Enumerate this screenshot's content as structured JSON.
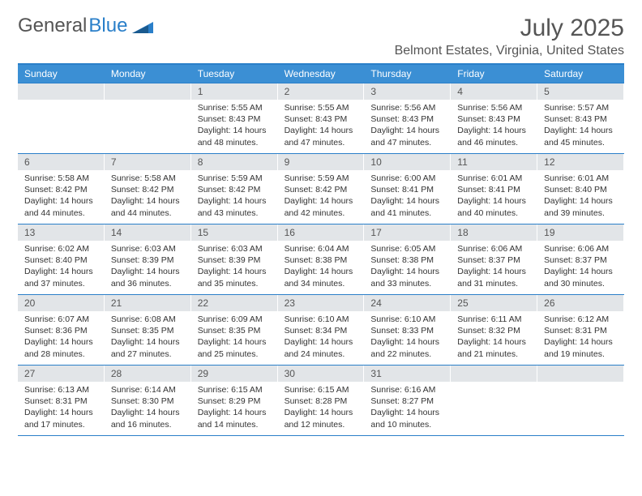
{
  "logo": {
    "text1": "General",
    "text2": "Blue"
  },
  "title": "July 2025",
  "location": "Belmont Estates, Virginia, United States",
  "colors": {
    "header_bar": "#3b8fd4",
    "accent_line": "#2a7fc9",
    "daynum_bg": "#e2e5e8",
    "text": "#333333",
    "muted": "#555555"
  },
  "daynames": [
    "Sunday",
    "Monday",
    "Tuesday",
    "Wednesday",
    "Thursday",
    "Friday",
    "Saturday"
  ],
  "weeks": [
    [
      {
        "n": "",
        "sr": "",
        "ss": "",
        "dl": ""
      },
      {
        "n": "",
        "sr": "",
        "ss": "",
        "dl": ""
      },
      {
        "n": "1",
        "sr": "Sunrise: 5:55 AM",
        "ss": "Sunset: 8:43 PM",
        "dl": "Daylight: 14 hours and 48 minutes."
      },
      {
        "n": "2",
        "sr": "Sunrise: 5:55 AM",
        "ss": "Sunset: 8:43 PM",
        "dl": "Daylight: 14 hours and 47 minutes."
      },
      {
        "n": "3",
        "sr": "Sunrise: 5:56 AM",
        "ss": "Sunset: 8:43 PM",
        "dl": "Daylight: 14 hours and 47 minutes."
      },
      {
        "n": "4",
        "sr": "Sunrise: 5:56 AM",
        "ss": "Sunset: 8:43 PM",
        "dl": "Daylight: 14 hours and 46 minutes."
      },
      {
        "n": "5",
        "sr": "Sunrise: 5:57 AM",
        "ss": "Sunset: 8:43 PM",
        "dl": "Daylight: 14 hours and 45 minutes."
      }
    ],
    [
      {
        "n": "6",
        "sr": "Sunrise: 5:58 AM",
        "ss": "Sunset: 8:42 PM",
        "dl": "Daylight: 14 hours and 44 minutes."
      },
      {
        "n": "7",
        "sr": "Sunrise: 5:58 AM",
        "ss": "Sunset: 8:42 PM",
        "dl": "Daylight: 14 hours and 44 minutes."
      },
      {
        "n": "8",
        "sr": "Sunrise: 5:59 AM",
        "ss": "Sunset: 8:42 PM",
        "dl": "Daylight: 14 hours and 43 minutes."
      },
      {
        "n": "9",
        "sr": "Sunrise: 5:59 AM",
        "ss": "Sunset: 8:42 PM",
        "dl": "Daylight: 14 hours and 42 minutes."
      },
      {
        "n": "10",
        "sr": "Sunrise: 6:00 AM",
        "ss": "Sunset: 8:41 PM",
        "dl": "Daylight: 14 hours and 41 minutes."
      },
      {
        "n": "11",
        "sr": "Sunrise: 6:01 AM",
        "ss": "Sunset: 8:41 PM",
        "dl": "Daylight: 14 hours and 40 minutes."
      },
      {
        "n": "12",
        "sr": "Sunrise: 6:01 AM",
        "ss": "Sunset: 8:40 PM",
        "dl": "Daylight: 14 hours and 39 minutes."
      }
    ],
    [
      {
        "n": "13",
        "sr": "Sunrise: 6:02 AM",
        "ss": "Sunset: 8:40 PM",
        "dl": "Daylight: 14 hours and 37 minutes."
      },
      {
        "n": "14",
        "sr": "Sunrise: 6:03 AM",
        "ss": "Sunset: 8:39 PM",
        "dl": "Daylight: 14 hours and 36 minutes."
      },
      {
        "n": "15",
        "sr": "Sunrise: 6:03 AM",
        "ss": "Sunset: 8:39 PM",
        "dl": "Daylight: 14 hours and 35 minutes."
      },
      {
        "n": "16",
        "sr": "Sunrise: 6:04 AM",
        "ss": "Sunset: 8:38 PM",
        "dl": "Daylight: 14 hours and 34 minutes."
      },
      {
        "n": "17",
        "sr": "Sunrise: 6:05 AM",
        "ss": "Sunset: 8:38 PM",
        "dl": "Daylight: 14 hours and 33 minutes."
      },
      {
        "n": "18",
        "sr": "Sunrise: 6:06 AM",
        "ss": "Sunset: 8:37 PM",
        "dl": "Daylight: 14 hours and 31 minutes."
      },
      {
        "n": "19",
        "sr": "Sunrise: 6:06 AM",
        "ss": "Sunset: 8:37 PM",
        "dl": "Daylight: 14 hours and 30 minutes."
      }
    ],
    [
      {
        "n": "20",
        "sr": "Sunrise: 6:07 AM",
        "ss": "Sunset: 8:36 PM",
        "dl": "Daylight: 14 hours and 28 minutes."
      },
      {
        "n": "21",
        "sr": "Sunrise: 6:08 AM",
        "ss": "Sunset: 8:35 PM",
        "dl": "Daylight: 14 hours and 27 minutes."
      },
      {
        "n": "22",
        "sr": "Sunrise: 6:09 AM",
        "ss": "Sunset: 8:35 PM",
        "dl": "Daylight: 14 hours and 25 minutes."
      },
      {
        "n": "23",
        "sr": "Sunrise: 6:10 AM",
        "ss": "Sunset: 8:34 PM",
        "dl": "Daylight: 14 hours and 24 minutes."
      },
      {
        "n": "24",
        "sr": "Sunrise: 6:10 AM",
        "ss": "Sunset: 8:33 PM",
        "dl": "Daylight: 14 hours and 22 minutes."
      },
      {
        "n": "25",
        "sr": "Sunrise: 6:11 AM",
        "ss": "Sunset: 8:32 PM",
        "dl": "Daylight: 14 hours and 21 minutes."
      },
      {
        "n": "26",
        "sr": "Sunrise: 6:12 AM",
        "ss": "Sunset: 8:31 PM",
        "dl": "Daylight: 14 hours and 19 minutes."
      }
    ],
    [
      {
        "n": "27",
        "sr": "Sunrise: 6:13 AM",
        "ss": "Sunset: 8:31 PM",
        "dl": "Daylight: 14 hours and 17 minutes."
      },
      {
        "n": "28",
        "sr": "Sunrise: 6:14 AM",
        "ss": "Sunset: 8:30 PM",
        "dl": "Daylight: 14 hours and 16 minutes."
      },
      {
        "n": "29",
        "sr": "Sunrise: 6:15 AM",
        "ss": "Sunset: 8:29 PM",
        "dl": "Daylight: 14 hours and 14 minutes."
      },
      {
        "n": "30",
        "sr": "Sunrise: 6:15 AM",
        "ss": "Sunset: 8:28 PM",
        "dl": "Daylight: 14 hours and 12 minutes."
      },
      {
        "n": "31",
        "sr": "Sunrise: 6:16 AM",
        "ss": "Sunset: 8:27 PM",
        "dl": "Daylight: 14 hours and 10 minutes."
      },
      {
        "n": "",
        "sr": "",
        "ss": "",
        "dl": ""
      },
      {
        "n": "",
        "sr": "",
        "ss": "",
        "dl": ""
      }
    ]
  ]
}
